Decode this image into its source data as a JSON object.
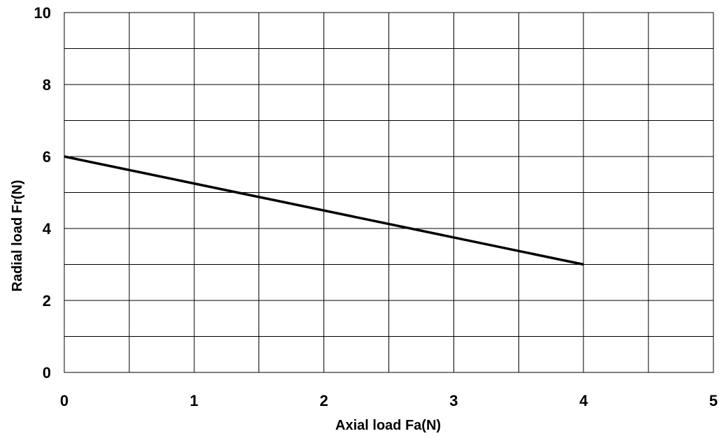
{
  "chart_data": {
    "type": "line",
    "title": "",
    "xlabel": "Axial load Fa(N)",
    "ylabel": "Radial load Fr(N)",
    "xlim": [
      0,
      5
    ],
    "ylim": [
      0,
      10
    ],
    "xticks": [
      0,
      1,
      2,
      3,
      4,
      5
    ],
    "yticks": [
      0,
      2,
      4,
      6,
      8,
      10
    ],
    "x_minor_step": 0.5,
    "y_minor_step": 1,
    "grid": true,
    "legend": "none",
    "series": [
      {
        "x": [
          0,
          4
        ],
        "values": [
          6,
          3
        ],
        "color": "#000000"
      }
    ]
  }
}
